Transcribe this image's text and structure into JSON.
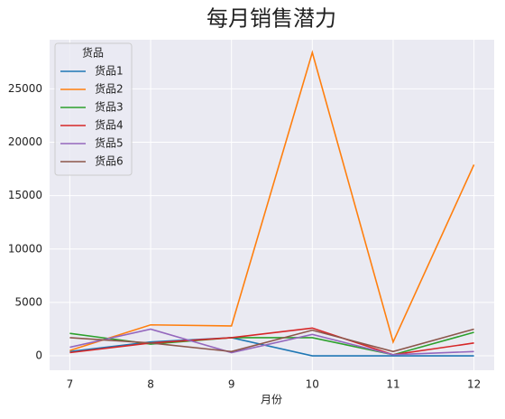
{
  "chart_data": {
    "type": "line",
    "title": "每月销售潜力",
    "x_label": "月份",
    "x": [
      7,
      8,
      9,
      10,
      11,
      12
    ],
    "series": [
      {
        "name": "货品1",
        "color": "#1f77b4",
        "values": [
          400,
          1300,
          1700,
          0,
          0,
          0
        ]
      },
      {
        "name": "货品2",
        "color": "#ff7f0e",
        "values": [
          500,
          2900,
          2800,
          28400,
          1300,
          17900
        ]
      },
      {
        "name": "货品3",
        "color": "#2ca02c",
        "values": [
          2100,
          1100,
          1700,
          1700,
          100,
          2200
        ]
      },
      {
        "name": "货品4",
        "color": "#d62728",
        "values": [
          300,
          1200,
          1700,
          2600,
          100,
          1200
        ]
      },
      {
        "name": "货品5",
        "color": "#9467bd",
        "values": [
          800,
          2500,
          300,
          2000,
          100,
          400
        ]
      },
      {
        "name": "货品6",
        "color": "#8c564b",
        "values": [
          1700,
          1200,
          400,
          2400,
          400,
          2500
        ]
      }
    ],
    "legend_title": "货品",
    "legend": "upper left",
    "xlim": [
      6.75,
      12.25
    ],
    "xticks": [
      7,
      8,
      9,
      10,
      11,
      12
    ],
    "ylim": [
      -1350,
      29600
    ],
    "yticks": [
      0,
      5000,
      10000,
      15000,
      20000,
      25000
    ],
    "grid": true
  }
}
